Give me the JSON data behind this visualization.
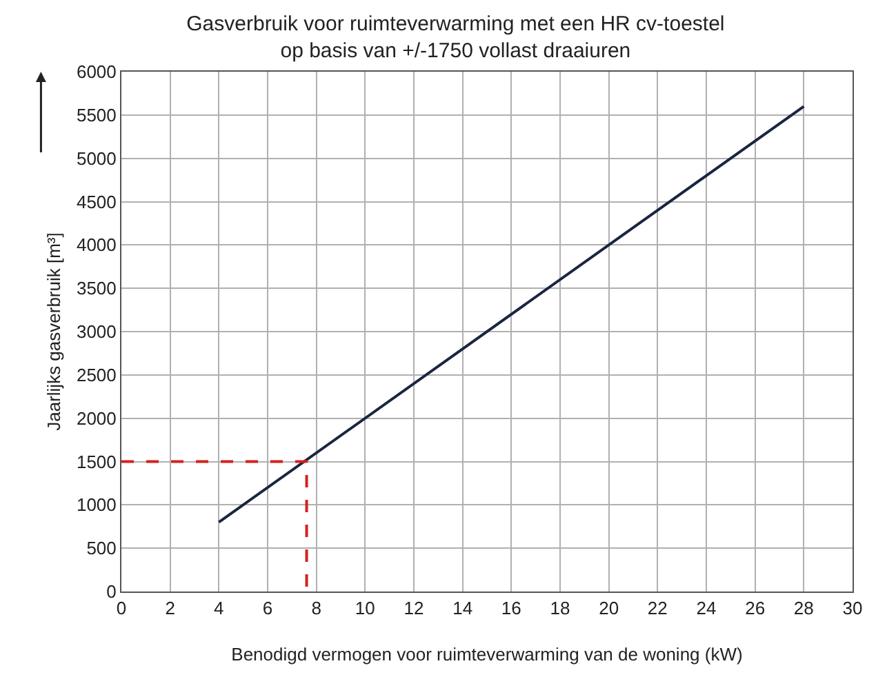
{
  "chart_data": {
    "type": "line",
    "title": "Gasverbruik voor ruimteverwarming met een HR cv-toestel\nop basis van +/-1750 vollast draaiuren",
    "xlabel": "Benodigd vermogen voor ruimteverwarming van de woning (kW)",
    "ylabel": "Jaarlijks gasverbruik [m³]",
    "series": [
      {
        "color": "#1a2540",
        "x": [
          4,
          28
        ],
        "values": [
          800,
          5600
        ],
        "line_style": "solid"
      },
      {
        "color": "#d42020",
        "x": [
          0,
          7.6,
          7.6
        ],
        "values": [
          1500,
          1500,
          0
        ],
        "line_style": "dashed"
      }
    ],
    "xlim": [
      0,
      30
    ],
    "xticks": [
      0,
      2,
      4,
      6,
      8,
      10,
      12,
      14,
      16,
      18,
      20,
      22,
      24,
      26,
      28,
      30
    ],
    "ylim": [
      0,
      6000
    ],
    "yticks": [
      0,
      500,
      1000,
      1500,
      2000,
      2500,
      3000,
      3500,
      4000,
      4500,
      5000,
      5500,
      6000
    ],
    "grid": true,
    "legend": false,
    "marker": "none"
  }
}
